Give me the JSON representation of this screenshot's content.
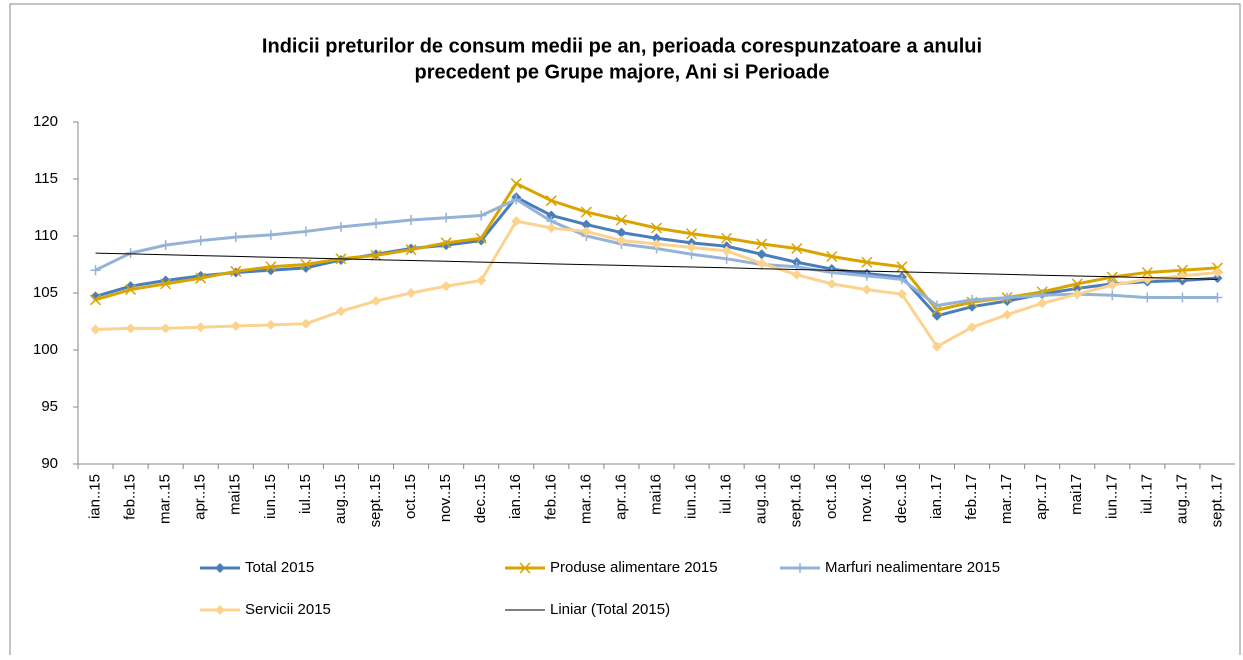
{
  "chart_data": {
    "type": "line",
    "title": [
      "Indicii preturilor de consum medii pe an, perioada corespunzatoare a anului",
      "precedent pe Grupe majore, Ani si Perioade"
    ],
    "categories": [
      "ian..15",
      "feb..15",
      "mar..15",
      "apr..15",
      "mai15",
      "iun..15",
      "iul..15",
      "aug..15",
      "sept..15",
      "oct..15",
      "nov..15",
      "dec..15",
      "ian..16",
      "feb..16",
      "mar..16",
      "apr..16",
      "mai16",
      "iun..16",
      "iul..16",
      "aug..16",
      "sept..16",
      "oct..16",
      "nov..16",
      "dec..16",
      "ian..17",
      "feb..17",
      "mar..17",
      "apr..17",
      "mai17",
      "iun..17",
      "iul..17",
      "aug..17",
      "sept..17"
    ],
    "series": [
      {
        "name": "Total 2015",
        "color": "#4a7ebb",
        "marker": "diamond",
        "values": [
          104.7,
          105.6,
          106.1,
          106.5,
          106.8,
          107.0,
          107.2,
          107.9,
          108.4,
          108.9,
          109.2,
          109.6,
          113.4,
          111.8,
          111.0,
          110.3,
          109.8,
          109.4,
          109.1,
          108.4,
          107.7,
          107.1,
          106.7,
          106.4,
          103.0,
          103.8,
          104.3,
          104.9,
          105.4,
          105.8,
          106.0,
          106.1,
          106.3
        ]
      },
      {
        "name": "Produse alimentare 2015",
        "color": "#d9a400",
        "marker": "x",
        "values": [
          104.4,
          105.3,
          105.8,
          106.3,
          106.9,
          107.3,
          107.5,
          108.0,
          108.3,
          108.8,
          109.4,
          109.8,
          114.6,
          113.1,
          112.1,
          111.4,
          110.7,
          110.2,
          109.8,
          109.3,
          108.9,
          108.2,
          107.7,
          107.3,
          103.5,
          104.2,
          104.6,
          105.1,
          105.8,
          106.4,
          106.8,
          107.0,
          107.2
        ]
      },
      {
        "name": "Marfuri nealimentare 2015",
        "color": "#95b3d7",
        "marker": "plus",
        "values": [
          107.0,
          108.5,
          109.2,
          109.6,
          109.9,
          110.1,
          110.4,
          110.8,
          111.1,
          111.4,
          111.6,
          111.8,
          113.2,
          111.3,
          110.0,
          109.3,
          108.9,
          108.4,
          108.0,
          107.5,
          107.3,
          106.8,
          106.5,
          106.2,
          103.9,
          104.4,
          104.6,
          104.8,
          104.9,
          104.8,
          104.6,
          104.6,
          104.6
        ]
      },
      {
        "name": "Servicii 2015",
        "color": "#fcd28f",
        "marker": "diamond",
        "values": [
          101.8,
          101.9,
          101.9,
          102.0,
          102.1,
          102.2,
          102.3,
          103.4,
          104.3,
          105.0,
          105.6,
          106.1,
          111.3,
          110.7,
          110.4,
          109.6,
          109.3,
          109.0,
          108.7,
          107.6,
          106.6,
          105.8,
          105.3,
          104.9,
          100.3,
          102.0,
          103.1,
          104.1,
          104.9,
          105.7,
          106.2,
          106.5,
          106.8
        ]
      },
      {
        "name": "Liniar (Total 2015)",
        "color": "#000000",
        "marker": "none",
        "width": 1,
        "values": [
          108.5,
          108.43,
          108.36,
          108.28,
          108.21,
          108.14,
          108.07,
          107.99,
          107.92,
          107.85,
          107.78,
          107.71,
          107.64,
          107.56,
          107.49,
          107.42,
          107.35,
          107.28,
          107.21,
          107.13,
          107.06,
          106.99,
          106.92,
          106.85,
          106.78,
          106.7,
          106.63,
          106.56,
          106.49,
          106.42,
          106.35,
          106.28,
          106.2
        ]
      }
    ],
    "ylim": [
      90,
      120
    ],
    "yticks": [
      90,
      95,
      100,
      105,
      110,
      115,
      120
    ],
    "grid": false
  }
}
